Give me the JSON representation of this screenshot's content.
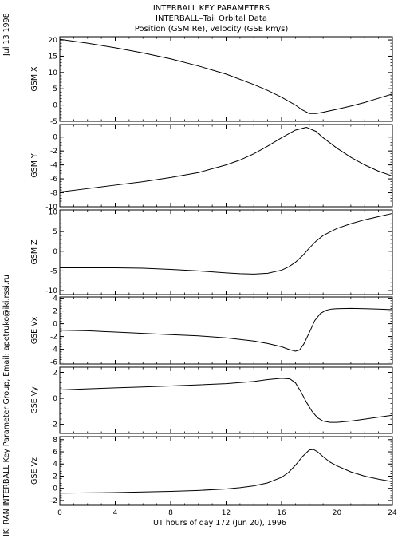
{
  "header": {
    "line1": "INTERBALL KEY PARAMETERS",
    "line2": "INTERBALL–Tail Orbital Data",
    "line3": "Position (GSM Re), velocity (GSE km/s)"
  },
  "side_date": "Jul 13 1998",
  "side_credit": "IKI RAN INTERBALL Key Parameter Group, Email: apetruko@iki.rssi.ru",
  "chart_data": [
    {
      "type": "line",
      "ylabel": "GSM X",
      "ylim": [
        -5,
        21
      ],
      "yticks": [
        20,
        15,
        10,
        5,
        0,
        -5
      ],
      "xlim": [
        0,
        24
      ],
      "series": [
        {
          "x": [
            0,
            2,
            4,
            6,
            8,
            10,
            12,
            14,
            15,
            16,
            17,
            17.5,
            18,
            18.5,
            19,
            20,
            21,
            22,
            23,
            24
          ],
          "values": [
            20.2,
            19.0,
            17.6,
            16.0,
            14.2,
            12.0,
            9.5,
            6.3,
            4.5,
            2.4,
            0.0,
            -1.5,
            -2.6,
            -2.6,
            -2.2,
            -1.3,
            -0.3,
            0.8,
            2.1,
            3.4
          ]
        }
      ]
    },
    {
      "type": "line",
      "ylabel": "GSM Y",
      "ylim": [
        -10,
        1.8
      ],
      "yticks": [
        0,
        -2,
        -4,
        -6,
        -8,
        -10
      ],
      "xlim": [
        0,
        24
      ],
      "series": [
        {
          "x": [
            0,
            2,
            4,
            6,
            8,
            10,
            12,
            13,
            14,
            15,
            16,
            17,
            17.8,
            18.5,
            19,
            20,
            21,
            22,
            23,
            24
          ],
          "values": [
            -7.9,
            -7.4,
            -6.9,
            -6.4,
            -5.8,
            -5.1,
            -4.0,
            -3.3,
            -2.4,
            -1.3,
            -0.1,
            1.0,
            1.4,
            0.8,
            -0.1,
            -1.6,
            -2.9,
            -4.0,
            -4.9,
            -5.6
          ]
        }
      ]
    },
    {
      "type": "line",
      "ylabel": "GSM Z",
      "ylim": [
        -11,
        10.5
      ],
      "yticks": [
        10,
        5,
        0,
        -5,
        -10
      ],
      "xlim": [
        0,
        24
      ],
      "series": [
        {
          "x": [
            0,
            2,
            4,
            6,
            8,
            10,
            12,
            13,
            14,
            15,
            16,
            16.5,
            17,
            17.5,
            18,
            18.5,
            19,
            20,
            21,
            22,
            23,
            24
          ],
          "values": [
            -4.2,
            -4.2,
            -4.2,
            -4.3,
            -4.6,
            -5.0,
            -5.5,
            -5.7,
            -5.8,
            -5.6,
            -4.8,
            -4.0,
            -2.8,
            -1.2,
            0.8,
            2.6,
            4.0,
            5.8,
            7.0,
            8.0,
            8.8,
            9.6
          ]
        }
      ]
    },
    {
      "type": "line",
      "ylabel": "GSE Vx",
      "ylim": [
        -6.3,
        4.2
      ],
      "yticks": [
        4,
        2,
        0,
        -2,
        -4,
        -6
      ],
      "xlim": [
        0,
        24
      ],
      "series": [
        {
          "x": [
            0,
            2,
            4,
            6,
            8,
            10,
            12,
            14,
            15,
            16,
            16.5,
            17,
            17.3,
            17.6,
            18,
            18.4,
            18.8,
            19.2,
            19.6,
            20,
            21,
            22,
            23,
            24
          ],
          "values": [
            -1.0,
            -1.1,
            -1.3,
            -1.5,
            -1.7,
            -1.9,
            -2.2,
            -2.7,
            -3.1,
            -3.6,
            -4.0,
            -4.3,
            -4.1,
            -3.2,
            -1.4,
            0.5,
            1.6,
            2.1,
            2.3,
            2.35,
            2.4,
            2.35,
            2.3,
            2.2
          ]
        }
      ]
    },
    {
      "type": "line",
      "ylabel": "GSE Vy",
      "ylim": [
        -2.7,
        2.4
      ],
      "yticks": [
        2,
        0,
        -2
      ],
      "xlim": [
        0,
        24
      ],
      "series": [
        {
          "x": [
            0,
            2,
            4,
            6,
            8,
            10,
            12,
            14,
            15,
            16,
            16.6,
            17,
            17.4,
            17.8,
            18.2,
            18.6,
            19,
            19.5,
            20,
            21,
            22,
            23,
            24
          ],
          "values": [
            0.65,
            0.73,
            0.81,
            0.88,
            0.96,
            1.04,
            1.13,
            1.3,
            1.45,
            1.55,
            1.5,
            1.2,
            0.5,
            -0.3,
            -1.0,
            -1.5,
            -1.75,
            -1.85,
            -1.85,
            -1.75,
            -1.6,
            -1.45,
            -1.3
          ]
        }
      ]
    },
    {
      "type": "line",
      "ylabel": "GSE Vz",
      "ylim": [
        -2.8,
        8.5
      ],
      "yticks": [
        8,
        6,
        4,
        2,
        0,
        -2
      ],
      "xlabel": "UT hours of day 172 (Jun 20), 1996",
      "xticks": [
        0,
        4,
        8,
        12,
        16,
        20,
        24
      ],
      "xlim": [
        0,
        24
      ],
      "series": [
        {
          "x": [
            0,
            2,
            4,
            6,
            8,
            10,
            12,
            13,
            14,
            15,
            16,
            16.5,
            17,
            17.5,
            18,
            18.3,
            18.6,
            19,
            19.5,
            20,
            21,
            22,
            23,
            24
          ],
          "values": [
            -0.8,
            -0.75,
            -0.7,
            -0.6,
            -0.5,
            -0.35,
            -0.1,
            0.1,
            0.4,
            0.9,
            1.8,
            2.6,
            3.8,
            5.2,
            6.3,
            6.4,
            6.0,
            5.2,
            4.3,
            3.7,
            2.7,
            2.0,
            1.5,
            1.1
          ]
        }
      ]
    }
  ]
}
